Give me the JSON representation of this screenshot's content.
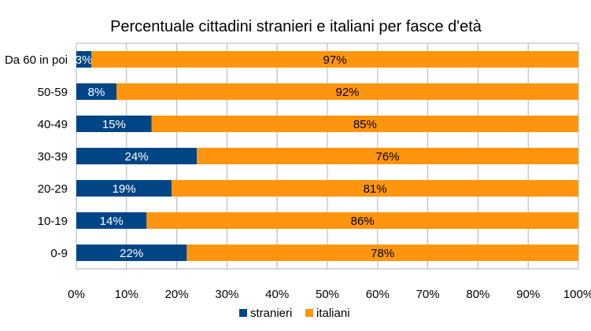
{
  "chart_data": {
    "type": "bar",
    "orientation": "horizontal",
    "stacked": "percent",
    "title": "Percentuale cittadini stranieri e italiani per fasce d'età",
    "categories": [
      "Da 60 in poi",
      "50-59",
      "40-49",
      "30-39",
      "20-29",
      "10-19",
      "0-9"
    ],
    "series": [
      {
        "name": "stranieri",
        "color": "#004586",
        "values": [
          3,
          8,
          15,
          24,
          19,
          14,
          22
        ],
        "labels": [
          "3%",
          "8%",
          "15%",
          "24%",
          "19%",
          "14%",
          "22%"
        ]
      },
      {
        "name": "italiani",
        "color": "#ff950e",
        "values": [
          97,
          92,
          85,
          76,
          81,
          86,
          78
        ],
        "labels": [
          "97%",
          "92%",
          "85%",
          "76%",
          "81%",
          "86%",
          "78%"
        ]
      }
    ],
    "xlim": [
      0,
      100
    ],
    "x_ticks": [
      "0%",
      "10%",
      "20%",
      "30%",
      "40%",
      "50%",
      "60%",
      "70%",
      "80%",
      "90%",
      "100%"
    ],
    "grid": "vertical",
    "legend": "bottom"
  }
}
